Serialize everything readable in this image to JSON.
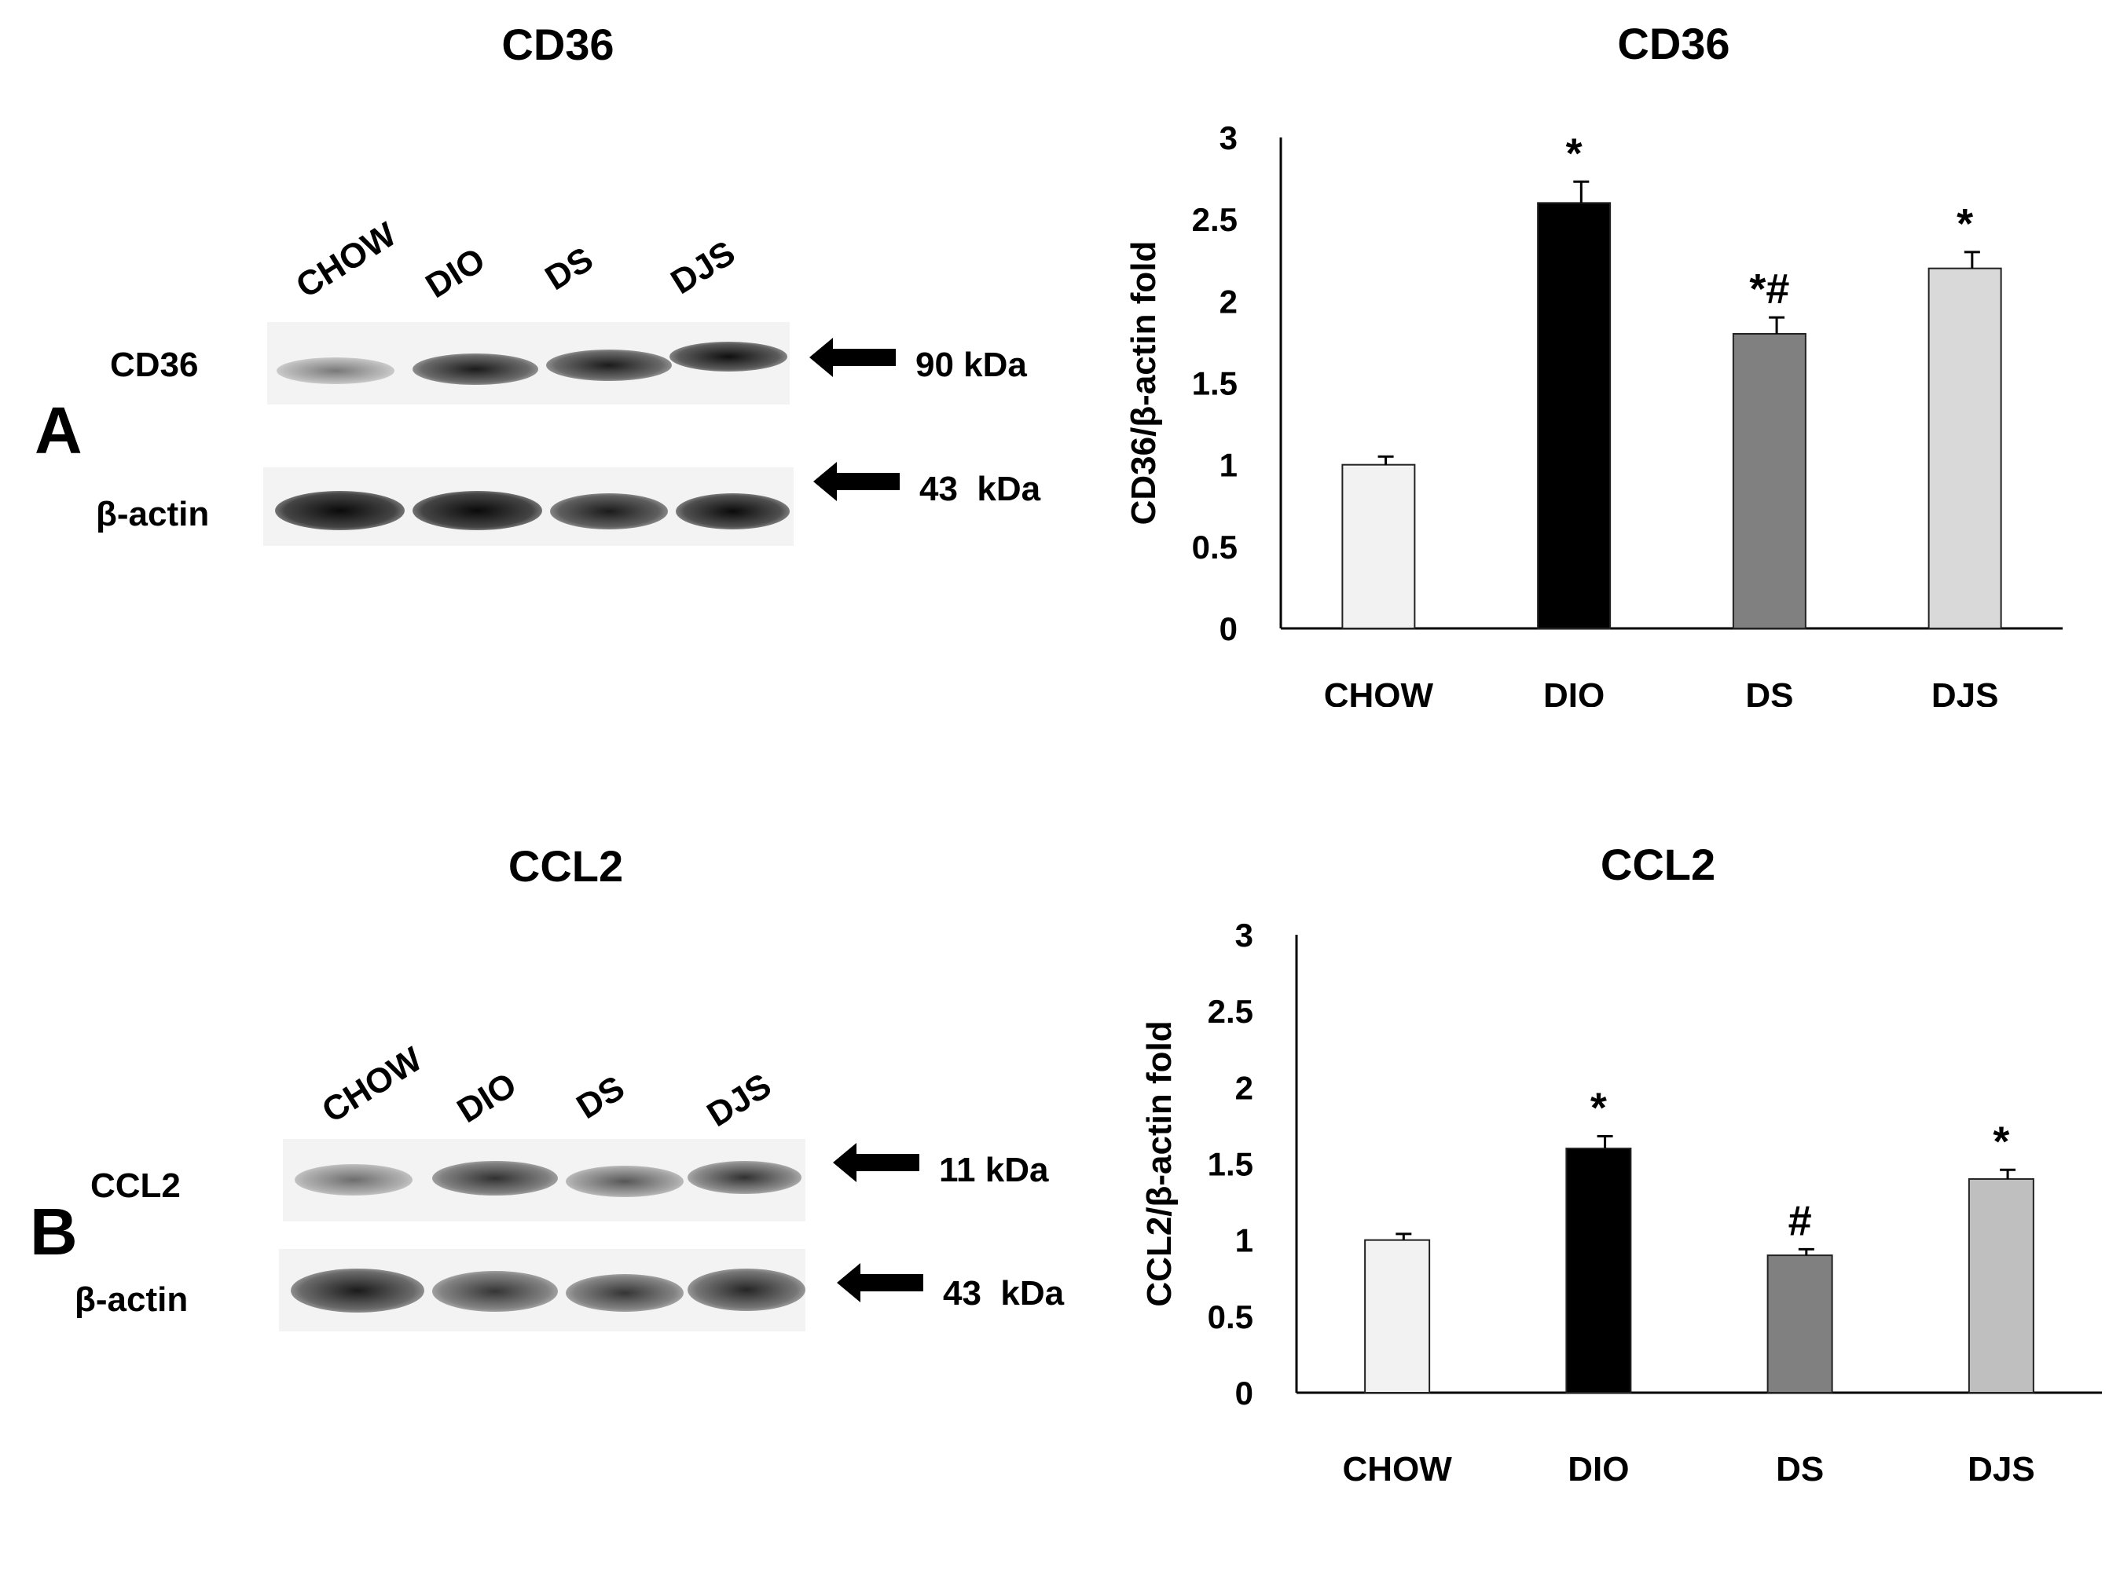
{
  "panels": [
    {
      "letter": "A",
      "blot_title": "CD36",
      "lanes": [
        "CHOW",
        "DIO",
        "DS",
        "DJS"
      ],
      "rows": [
        {
          "label": "CD36",
          "kda": "90 kDa",
          "intensities": [
            0.45,
            0.8,
            0.8,
            0.9
          ]
        },
        {
          "label": "β-actin",
          "kda": "43  kDa",
          "intensities": [
            1.0,
            1.0,
            0.9,
            0.95
          ]
        }
      ]
    },
    {
      "letter": "B",
      "blot_title": "CCL2",
      "lanes": [
        "CHOW",
        "DIO",
        "DS",
        "DJS"
      ],
      "rows": [
        {
          "label": "CCL2",
          "kda": "11 kDa",
          "intensities": [
            0.5,
            0.7,
            0.55,
            0.65
          ]
        },
        {
          "label": "β-actin",
          "kda": "43  kDa",
          "intensities": [
            0.9,
            0.75,
            0.75,
            0.8
          ]
        }
      ]
    }
  ],
  "chart_data": [
    {
      "type": "bar",
      "title": "CD36",
      "ylabel": "CD36/β-actin fold",
      "xlabel": "",
      "categories": [
        "CHOW",
        "DIO",
        "DS",
        "DJS"
      ],
      "values": [
        1.0,
        2.6,
        1.8,
        2.2
      ],
      "errors": [
        0.05,
        0.13,
        0.1,
        0.1
      ],
      "annotations": [
        "",
        "*",
        "*#",
        "*"
      ],
      "bar_colors": [
        "#f2f2f2",
        "#000000",
        "#808080",
        "#d9d9d9"
      ],
      "ylim": [
        0,
        3
      ],
      "yticks": [
        "0",
        "0.5",
        "1",
        "1.5",
        "2",
        "2.5",
        "3"
      ],
      "grid": false
    },
    {
      "type": "bar",
      "title": "CCL2",
      "ylabel": "CCL2/β-actin fold",
      "xlabel": "",
      "categories": [
        "CHOW",
        "DIO",
        "DS",
        "DJS"
      ],
      "values": [
        1.0,
        1.6,
        0.9,
        1.4
      ],
      "errors": [
        0.04,
        0.08,
        0.04,
        0.06
      ],
      "annotations": [
        "",
        "*",
        "#",
        "*"
      ],
      "bar_colors": [
        "#f2f2f2",
        "#000000",
        "#808080",
        "#bfbfbf"
      ],
      "ylim": [
        0,
        3
      ],
      "yticks": [
        "0",
        "0.5",
        "1",
        "1.5",
        "2",
        "2.5",
        "3"
      ],
      "grid": false
    }
  ]
}
